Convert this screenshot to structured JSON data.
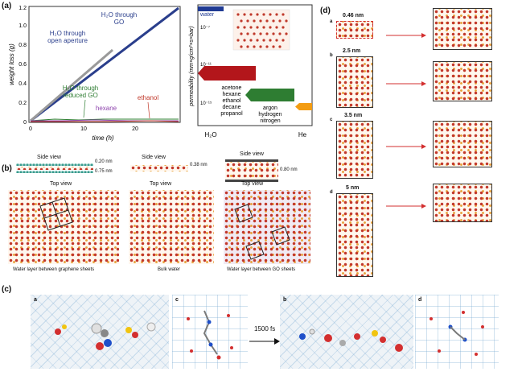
{
  "panel_a": {
    "label": "(a)",
    "left_chart": {
      "ylabel": "weight loss (g)",
      "xlabel": "time (h)",
      "yticks": [
        "0",
        "0.2",
        "0.4",
        "0.6",
        "0.8",
        "1.0",
        "1.2"
      ],
      "xticks": [
        "0",
        "10",
        "20"
      ],
      "annotations": {
        "go": [
          "H₂O through",
          "GO"
        ],
        "open": [
          "H₂O through",
          "open aperture"
        ],
        "rgo": [
          "H₂O through",
          "reduced GO"
        ],
        "hexane": "hexane",
        "ethanol": "ethanol"
      },
      "colors": {
        "go": "#2a3e8c",
        "open": "#8a8a8a",
        "rgo": "#2e7d32",
        "hexane": "#8e44ad",
        "ethanol": "#c0392b"
      }
    },
    "right_chart": {
      "ylabel": "permeability (mm×g/cm²×s×bar)",
      "yticks": [
        "10⁻⁷",
        "10⁻¹¹",
        "10⁻¹⁵"
      ],
      "xlabels": [
        "H₂O",
        "He"
      ],
      "water_label": "water",
      "group_red": [
        "acetone",
        "hexane",
        "ethanol",
        "decane",
        "propanol"
      ],
      "group_green": [
        "argon",
        "hydrogen",
        "nitrogen"
      ],
      "colors": {
        "water": "#1f3a93",
        "red": "#b3161b",
        "green": "#2e7d32",
        "orange": "#f39c12"
      }
    }
  },
  "panel_b": {
    "label": "(b)",
    "side_view": "Side view",
    "top_view": "Top view",
    "dims": {
      "g1": "0.20 nm",
      "g2": "0.75 nm",
      "bulk": "0.38 nm",
      "go": "0.80 nm"
    },
    "captions": [
      "Water layer between graphene sheets",
      "Bulk water",
      "Water layer between GO sheets"
    ]
  },
  "panel_c": {
    "label": "(c)",
    "sub": [
      "a",
      "c",
      "b",
      "d"
    ],
    "arrow_label": "1500 fs"
  },
  "panel_d": {
    "label": "(d)",
    "rows": [
      {
        "tag": "a",
        "size": "0.46 nm"
      },
      {
        "tag": "b",
        "size": "2.5 nm"
      },
      {
        "tag": "c",
        "size": "3.5 nm"
      },
      {
        "tag": "d",
        "size": "5 nm"
      }
    ]
  }
}
